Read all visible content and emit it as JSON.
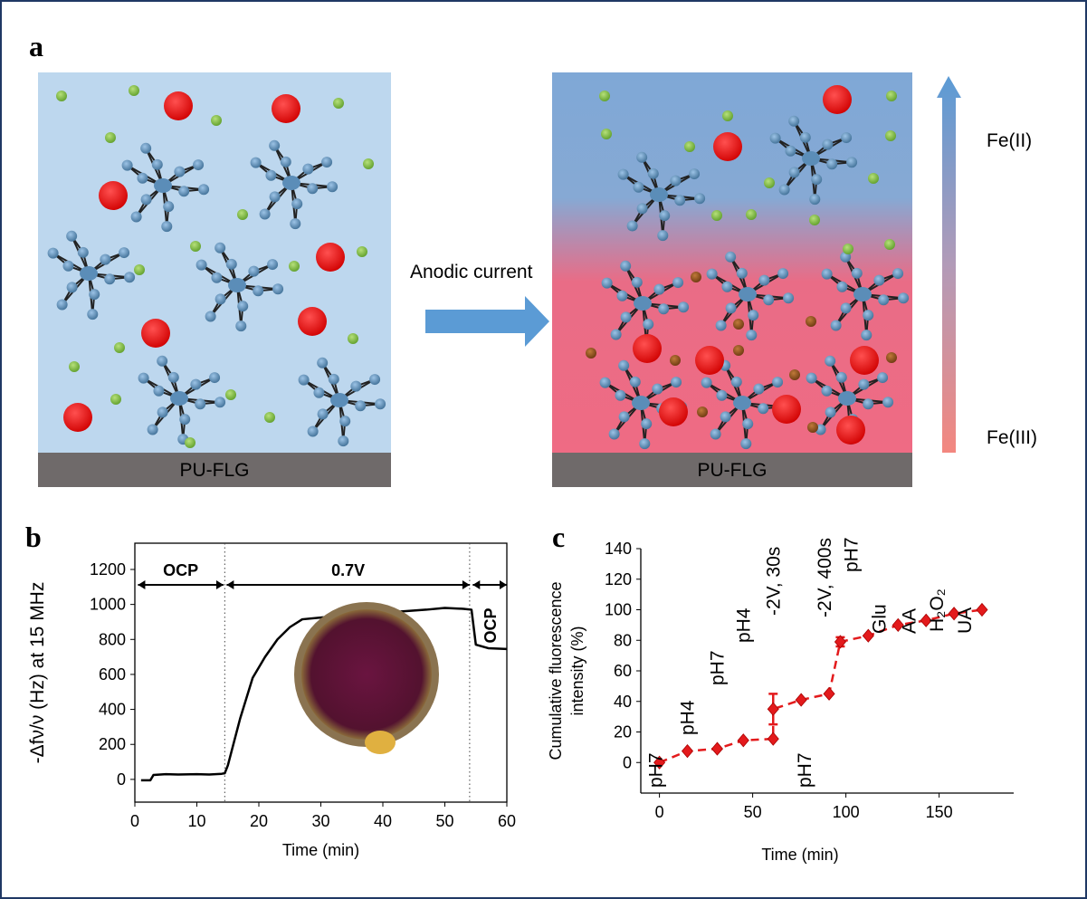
{
  "panel_a": {
    "label": "a",
    "left_substrate": "PU-FLG",
    "right_substrate": "PU-FLG",
    "arrow_label": "Anodic current",
    "top_label": "Fe(II)",
    "bottom_label": "Fe(III)"
  },
  "chart_data": [
    {
      "type": "line",
      "panel_label": "b",
      "x_label": "Time (min)",
      "y_label": "-Δfν/ν (Hz) at 15 MHz",
      "color": "#000000",
      "x": [
        1,
        2.5,
        3,
        5,
        7,
        10,
        12,
        14,
        14.5,
        15,
        17,
        19,
        21,
        23,
        25,
        27,
        30,
        33,
        40,
        43,
        47,
        50,
        53,
        54.3,
        55,
        57,
        60
      ],
      "values": [
        -5,
        -5,
        25,
        30,
        28,
        30,
        28,
        32,
        35,
        80,
        350,
        580,
        700,
        800,
        870,
        915,
        925,
        935,
        940,
        960,
        970,
        980,
        975,
        970,
        770,
        750,
        745
      ],
      "xlim": [
        0,
        60
      ],
      "xticks": [
        0,
        10,
        20,
        30,
        40,
        50,
        60
      ],
      "ylim": [
        -130,
        1350
      ],
      "yticks": [
        0,
        200,
        400,
        600,
        800,
        1000,
        1200
      ],
      "phases": [
        {
          "label": "OCP",
          "start": 0.5,
          "end": 14.3
        },
        {
          "label": "0.7V",
          "start": 14.8,
          "end": 54
        },
        {
          "label": "OCP",
          "start": 54.5,
          "end": 60
        }
      ],
      "phase_boundaries": [
        14.5,
        54
      ]
    },
    {
      "type": "scatter",
      "panel_label": "c",
      "x_label": "Time (min)",
      "y_label": "Cumulative fluorescence intensity (%)",
      "color": "#e31a1c",
      "x": [
        0,
        15,
        31,
        45,
        61,
        61,
        76,
        91,
        97,
        112,
        128,
        143,
        158,
        173
      ],
      "values": [
        0,
        7.5,
        9,
        14.5,
        15.5,
        35,
        41,
        45,
        79,
        83,
        90,
        93,
        97.5,
        100
      ],
      "errors": [
        null,
        null,
        null,
        null,
        null,
        10,
        null,
        null,
        3,
        null,
        null,
        null,
        null,
        null
      ],
      "point_labels": [
        "pH7",
        "pH4",
        "pH7",
        "pH4",
        null,
        "-2V, 30s",
        "pH7",
        "-2V, 400s",
        "pH7",
        "Glu",
        "AA",
        "H₂O₂",
        "UA",
        null
      ],
      "xlim": [
        -10,
        190
      ],
      "xticks": [
        0,
        50,
        100,
        150
      ],
      "ylim": [
        -20,
        140
      ],
      "yticks": [
        0,
        20,
        40,
        60,
        80,
        100,
        120,
        140
      ]
    }
  ]
}
